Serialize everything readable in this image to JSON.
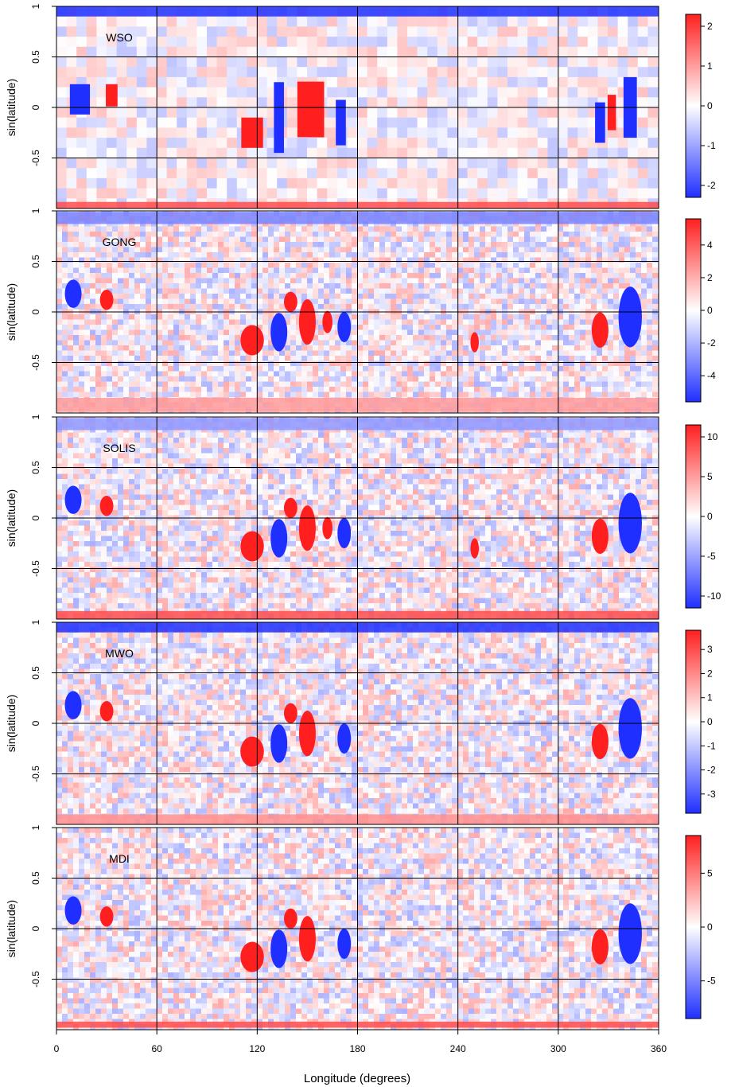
{
  "figure": {
    "xlabel": "Longitude (degrees)",
    "x_ticks": [
      "0",
      "60",
      "120",
      "180",
      "240",
      "300",
      "360"
    ]
  },
  "colormap": {
    "negative": "#1f2fff",
    "zero": "#ffffff",
    "positive": "#ff1f1f"
  },
  "chart_data": [
    {
      "type": "heatmap",
      "label": "WSO",
      "ylabel": "sin(latitude)",
      "xlim": [
        0,
        360
      ],
      "ylim": [
        -1,
        1
      ],
      "x_gridlines": [
        60,
        120,
        180,
        240,
        300
      ],
      "y_gridlines": [
        -0.5,
        0,
        0.5
      ],
      "y_ticks": [
        "1",
        "0.5",
        "0",
        "-0.5"
      ],
      "colorbar": {
        "range": [
          -2.3,
          2.3
        ],
        "ticks": [
          "2",
          "1",
          "0",
          "-1",
          "-2"
        ],
        "tick_values": [
          2,
          1,
          0,
          -1,
          -2
        ]
      },
      "pixelated": true,
      "features": [
        {
          "lon": 14,
          "lat": 0.08,
          "value": -1,
          "w": 12,
          "h": 0.3
        },
        {
          "lon": 33,
          "lat": 0.12,
          "value": 1,
          "w": 7,
          "h": 0.22
        },
        {
          "lon": 117,
          "lat": -0.25,
          "value": 1,
          "w": 13,
          "h": 0.3
        },
        {
          "lon": 133,
          "lat": -0.1,
          "value": -1,
          "w": 6,
          "h": 0.7
        },
        {
          "lon": 152,
          "lat": -0.02,
          "value": 1,
          "w": 16,
          "h": 0.55
        },
        {
          "lon": 170,
          "lat": -0.15,
          "value": -1,
          "w": 6,
          "h": 0.45
        },
        {
          "lon": 325,
          "lat": -0.15,
          "value": -1,
          "w": 6,
          "h": 0.4
        },
        {
          "lon": 332,
          "lat": -0.05,
          "value": 1,
          "w": 5,
          "h": 0.35
        },
        {
          "lon": 343,
          "lat": 0,
          "value": -1,
          "w": 8,
          "h": 0.6
        }
      ],
      "bands": [
        {
          "lat": 0.95,
          "value": -1,
          "h": 0.1
        },
        {
          "lat": -0.97,
          "value": 0.8,
          "h": 0.07
        }
      ]
    },
    {
      "type": "heatmap",
      "label": "GONG",
      "ylabel": "sin(latitude)",
      "xlim": [
        0,
        360
      ],
      "ylim": [
        -1,
        1
      ],
      "x_gridlines": [
        60,
        120,
        180,
        240,
        300
      ],
      "y_gridlines": [
        -0.5,
        0,
        0.5
      ],
      "y_ticks": [
        "1",
        "0.5",
        "0",
        "-0.5"
      ],
      "colorbar": {
        "range": [
          -5.6,
          5.6
        ],
        "ticks": [
          "4",
          "2",
          "0",
          "-2",
          "-4"
        ],
        "tick_values": [
          4,
          2,
          0,
          -2,
          -4
        ]
      },
      "pixelated": false,
      "features": [
        {
          "lon": 10,
          "lat": 0.18,
          "value": -1,
          "w": 10,
          "h": 0.28
        },
        {
          "lon": 30,
          "lat": 0.12,
          "value": 1,
          "w": 8,
          "h": 0.2
        },
        {
          "lon": 117,
          "lat": -0.28,
          "value": 1,
          "w": 14,
          "h": 0.3
        },
        {
          "lon": 133,
          "lat": -0.2,
          "value": -1,
          "w": 10,
          "h": 0.38
        },
        {
          "lon": 140,
          "lat": 0.1,
          "value": 1,
          "w": 8,
          "h": 0.2
        },
        {
          "lon": 150,
          "lat": -0.1,
          "value": 1,
          "w": 10,
          "h": 0.45
        },
        {
          "lon": 162,
          "lat": -0.1,
          "value": 1,
          "w": 6,
          "h": 0.22
        },
        {
          "lon": 172,
          "lat": -0.15,
          "value": -1,
          "w": 8,
          "h": 0.3
        },
        {
          "lon": 250,
          "lat": -0.3,
          "value": 1,
          "w": 5,
          "h": 0.2
        },
        {
          "lon": 325,
          "lat": -0.18,
          "value": 1,
          "w": 10,
          "h": 0.35
        },
        {
          "lon": 343,
          "lat": -0.05,
          "value": -1,
          "w": 14,
          "h": 0.6
        }
      ],
      "bands": [
        {
          "lat": 0.93,
          "value": -0.6,
          "h": 0.12
        },
        {
          "lat": -0.92,
          "value": 0.45,
          "h": 0.14
        }
      ]
    },
    {
      "type": "heatmap",
      "label": "SOLIS",
      "ylabel": "sin(latitude)",
      "xlim": [
        0,
        360
      ],
      "ylim": [
        -1,
        1
      ],
      "x_gridlines": [
        60,
        120,
        180,
        240,
        300
      ],
      "y_gridlines": [
        -0.5,
        0,
        0.5
      ],
      "y_ticks": [
        "1",
        "0.5",
        "0",
        "-0.5"
      ],
      "colorbar": {
        "range": [
          -11.5,
          11.5
        ],
        "ticks": [
          "10",
          "5",
          "0",
          "-5",
          "-10"
        ],
        "tick_values": [
          10,
          5,
          0,
          -5,
          -10
        ]
      },
      "pixelated": false,
      "features": [
        {
          "lon": 10,
          "lat": 0.18,
          "value": -1,
          "w": 10,
          "h": 0.28
        },
        {
          "lon": 30,
          "lat": 0.12,
          "value": 1,
          "w": 8,
          "h": 0.2
        },
        {
          "lon": 117,
          "lat": -0.28,
          "value": 1,
          "w": 14,
          "h": 0.3
        },
        {
          "lon": 133,
          "lat": -0.2,
          "value": -1,
          "w": 10,
          "h": 0.38
        },
        {
          "lon": 140,
          "lat": 0.1,
          "value": 1,
          "w": 8,
          "h": 0.2
        },
        {
          "lon": 150,
          "lat": -0.1,
          "value": 1,
          "w": 10,
          "h": 0.45
        },
        {
          "lon": 162,
          "lat": -0.1,
          "value": 1,
          "w": 6,
          "h": 0.22
        },
        {
          "lon": 172,
          "lat": -0.15,
          "value": -1,
          "w": 8,
          "h": 0.3
        },
        {
          "lon": 250,
          "lat": -0.3,
          "value": 1,
          "w": 5,
          "h": 0.2
        },
        {
          "lon": 325,
          "lat": -0.18,
          "value": 1,
          "w": 10,
          "h": 0.35
        },
        {
          "lon": 343,
          "lat": -0.05,
          "value": -1,
          "w": 14,
          "h": 0.6
        }
      ],
      "bands": [
        {
          "lat": 0.93,
          "value": -0.5,
          "h": 0.12
        },
        {
          "lat": -0.96,
          "value": 0.8,
          "h": 0.08
        }
      ]
    },
    {
      "type": "heatmap",
      "label": "MWO",
      "ylabel": "sin(latitude)",
      "xlim": [
        0,
        360
      ],
      "ylim": [
        -1,
        1
      ],
      "x_gridlines": [
        60,
        120,
        180,
        240,
        300
      ],
      "y_gridlines": [
        -0.5,
        0,
        0.5
      ],
      "y_ticks": [
        "1",
        "0.5",
        "0",
        "-0.5"
      ],
      "colorbar": {
        "range": [
          -3.8,
          3.8
        ],
        "ticks": [
          "3",
          "2",
          "1",
          "0",
          "-1",
          "-2",
          "-3"
        ],
        "tick_values": [
          3,
          2,
          1,
          0,
          -1,
          -2,
          -3
        ]
      },
      "pixelated": false,
      "features": [
        {
          "lon": 10,
          "lat": 0.18,
          "value": -1,
          "w": 10,
          "h": 0.28
        },
        {
          "lon": 30,
          "lat": 0.12,
          "value": 1,
          "w": 8,
          "h": 0.2
        },
        {
          "lon": 117,
          "lat": -0.28,
          "value": 1,
          "w": 14,
          "h": 0.3
        },
        {
          "lon": 133,
          "lat": -0.2,
          "value": -1,
          "w": 10,
          "h": 0.38
        },
        {
          "lon": 140,
          "lat": 0.1,
          "value": 1,
          "w": 8,
          "h": 0.2
        },
        {
          "lon": 150,
          "lat": -0.1,
          "value": 1,
          "w": 10,
          "h": 0.45
        },
        {
          "lon": 172,
          "lat": -0.15,
          "value": -1,
          "w": 8,
          "h": 0.3
        },
        {
          "lon": 325,
          "lat": -0.18,
          "value": 1,
          "w": 10,
          "h": 0.35
        },
        {
          "lon": 343,
          "lat": -0.05,
          "value": -1,
          "w": 14,
          "h": 0.6
        }
      ],
      "bands": [
        {
          "lat": 0.95,
          "value": -1,
          "h": 0.1
        },
        {
          "lat": -0.95,
          "value": 0.5,
          "h": 0.1
        }
      ]
    },
    {
      "type": "heatmap",
      "label": "MDI",
      "ylabel": "sin(latitude)",
      "xlim": [
        0,
        360
      ],
      "ylim": [
        -1,
        1
      ],
      "x_gridlines": [
        60,
        120,
        180,
        240,
        300
      ],
      "y_gridlines": [
        -0.5,
        0,
        0.5
      ],
      "y_ticks": [
        "1",
        "0.5",
        "0",
        "-0.5"
      ],
      "colorbar": {
        "range": [
          -8.5,
          8.5
        ],
        "ticks": [
          "5",
          "0",
          "-5"
        ],
        "tick_values": [
          5,
          0,
          -5
        ]
      },
      "pixelated": false,
      "features": [
        {
          "lon": 10,
          "lat": 0.18,
          "value": -1,
          "w": 10,
          "h": 0.28
        },
        {
          "lon": 30,
          "lat": 0.12,
          "value": 1,
          "w": 8,
          "h": 0.2
        },
        {
          "lon": 117,
          "lat": -0.28,
          "value": 1,
          "w": 14,
          "h": 0.3
        },
        {
          "lon": 133,
          "lat": -0.2,
          "value": -1,
          "w": 10,
          "h": 0.38
        },
        {
          "lon": 140,
          "lat": 0.1,
          "value": 1,
          "w": 8,
          "h": 0.2
        },
        {
          "lon": 150,
          "lat": -0.1,
          "value": 1,
          "w": 10,
          "h": 0.45
        },
        {
          "lon": 172,
          "lat": -0.15,
          "value": -1,
          "w": 8,
          "h": 0.3
        },
        {
          "lon": 325,
          "lat": -0.18,
          "value": 1,
          "w": 10,
          "h": 0.35
        },
        {
          "lon": 343,
          "lat": -0.05,
          "value": -1,
          "w": 14,
          "h": 0.6
        }
      ],
      "bands": [
        {
          "lat": -0.95,
          "value": 0.8,
          "h": 0.06
        }
      ]
    }
  ]
}
